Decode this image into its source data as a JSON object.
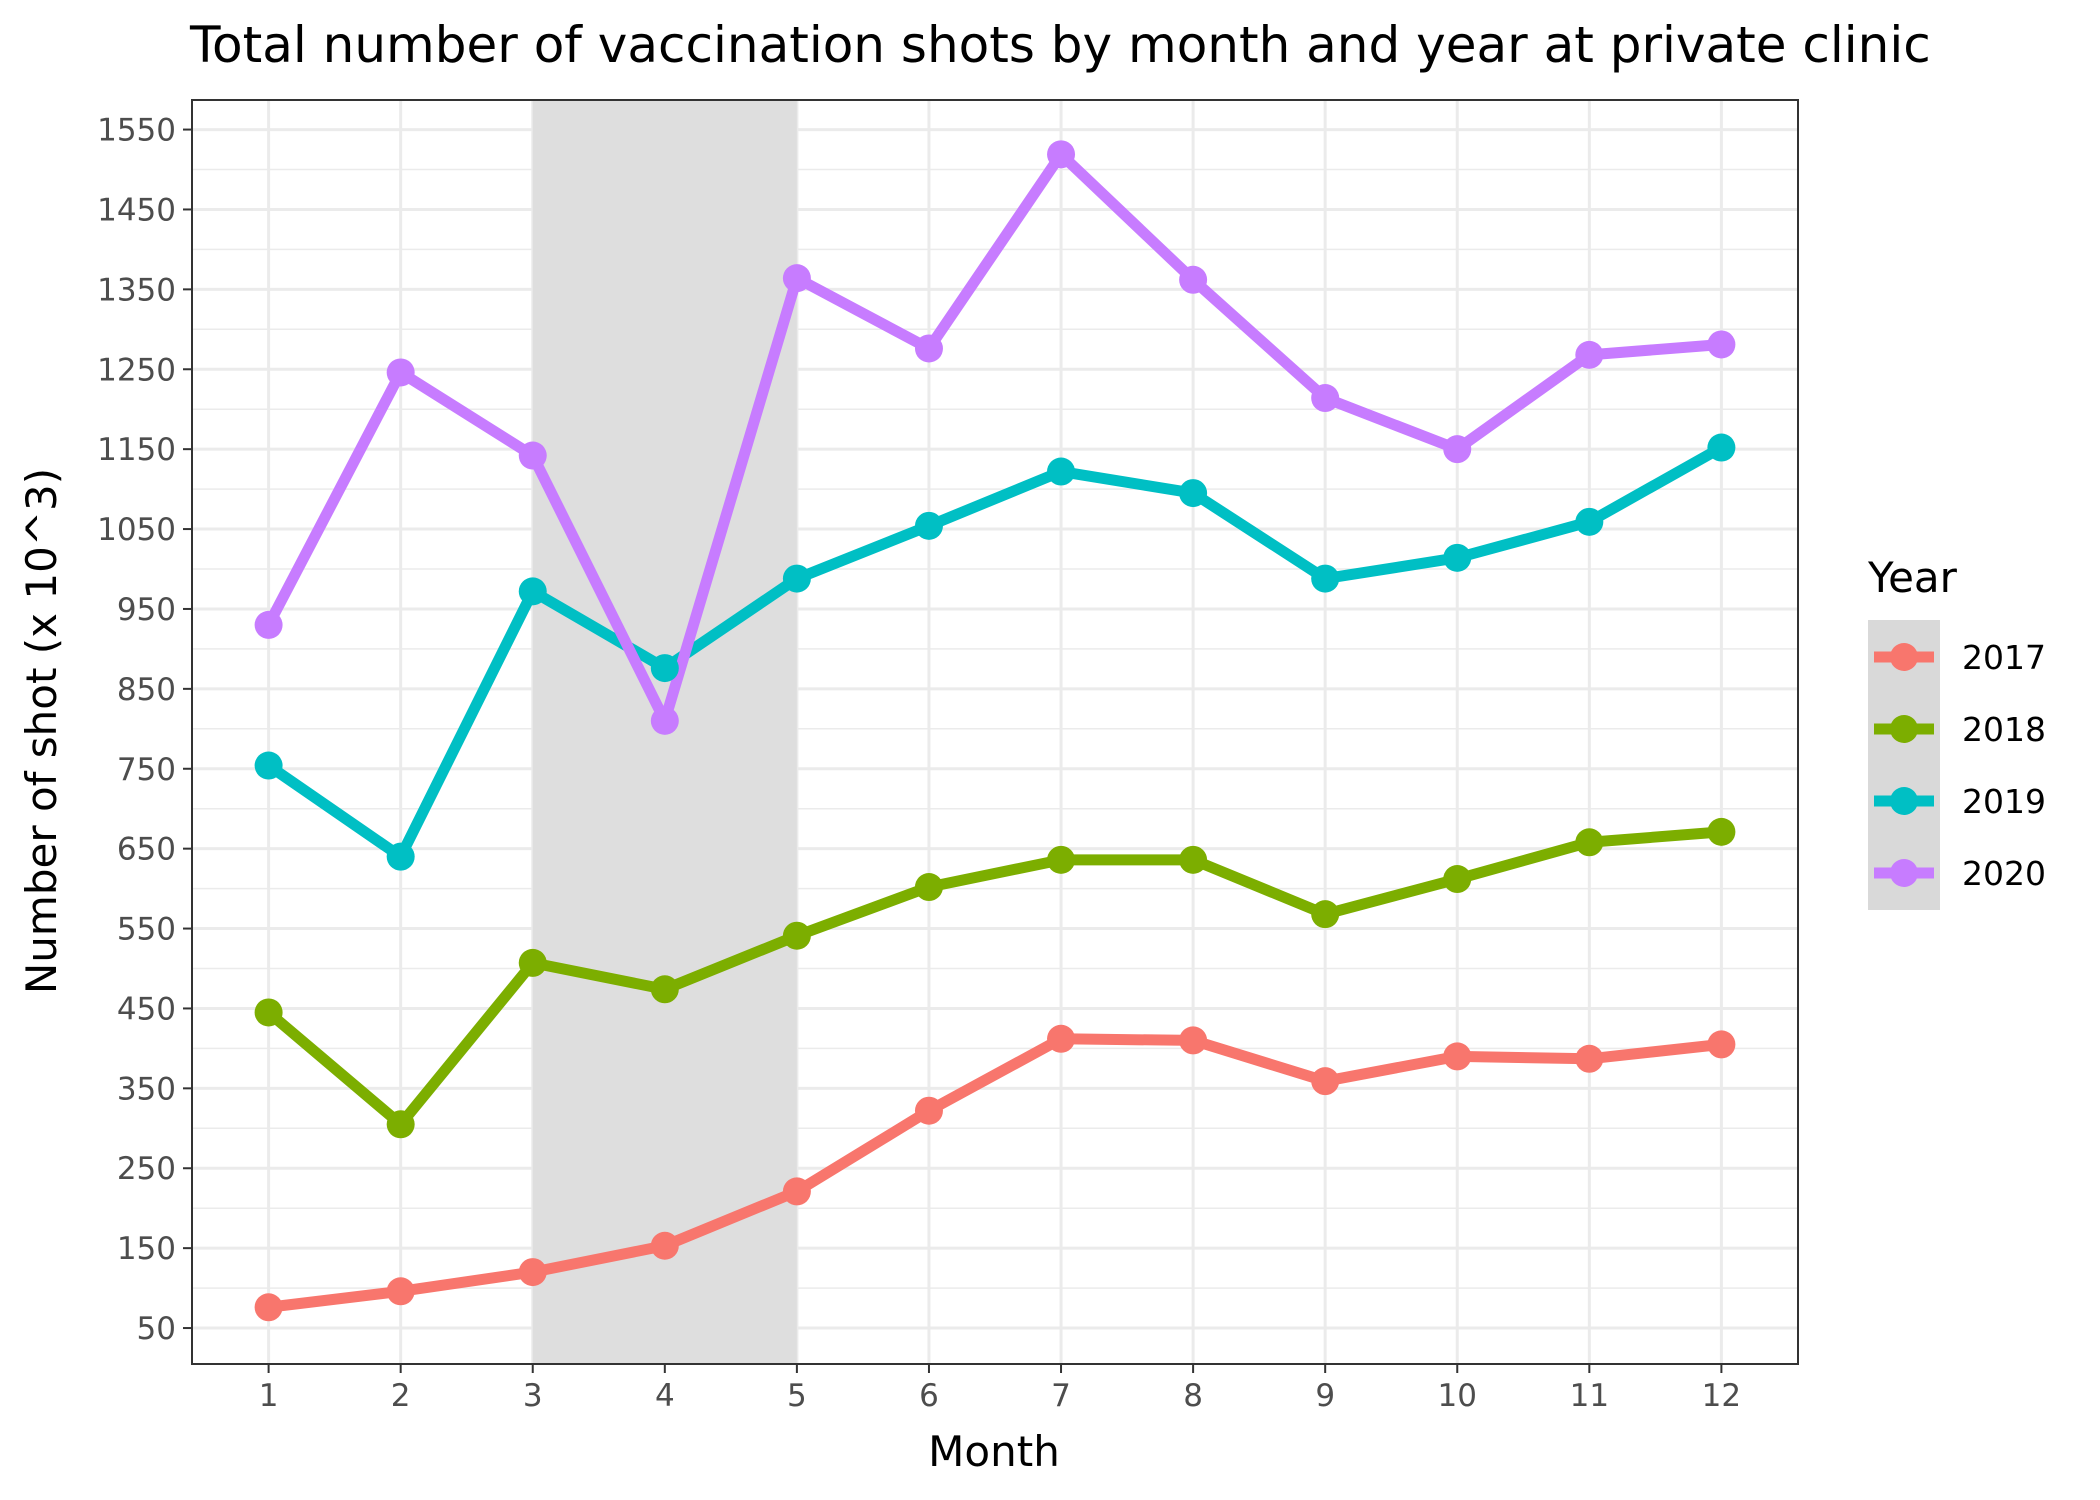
{
  "chart_data": {
    "type": "line",
    "title": "Total number of vaccination shots by month and year at private clinic",
    "xlabel": "Month",
    "ylabel": "Number of shot (x 10^3)",
    "x": [
      1,
      2,
      3,
      4,
      5,
      6,
      7,
      8,
      9,
      10,
      11,
      12
    ],
    "xticks": [
      "1",
      "2",
      "3",
      "4",
      "5",
      "6",
      "7",
      "8",
      "9",
      "10",
      "11",
      "12"
    ],
    "yticks": [
      50,
      150,
      250,
      350,
      450,
      550,
      650,
      750,
      850,
      950,
      1050,
      1150,
      1250,
      1350,
      1450,
      1550
    ],
    "xlim": [
      0.42,
      12.58
    ],
    "ylim": [
      5,
      1587
    ],
    "grid": true,
    "shaded_region": {
      "x_start": 3,
      "x_end": 5,
      "color": "#dedede"
    },
    "legend": {
      "title": "Year",
      "position": "right"
    },
    "series": [
      {
        "name": "2017",
        "color": "#f8766d",
        "values": [
          76,
          96,
          120,
          153,
          221,
          322,
          412,
          410,
          359,
          390,
          387,
          405
        ]
      },
      {
        "name": "2018",
        "color": "#7cae00",
        "values": [
          445,
          305,
          507,
          474,
          541,
          602,
          636,
          636,
          568,
          612,
          658,
          671
        ]
      },
      {
        "name": "2019",
        "color": "#00bfc4",
        "values": [
          754,
          640,
          972,
          876,
          988,
          1054,
          1122,
          1095,
          988,
          1014,
          1059,
          1152
        ]
      },
      {
        "name": "2020",
        "color": "#c77cff",
        "values": [
          930,
          1246,
          1142,
          810,
          1364,
          1276,
          1519,
          1362,
          1214,
          1150,
          1268,
          1281
        ]
      }
    ]
  }
}
